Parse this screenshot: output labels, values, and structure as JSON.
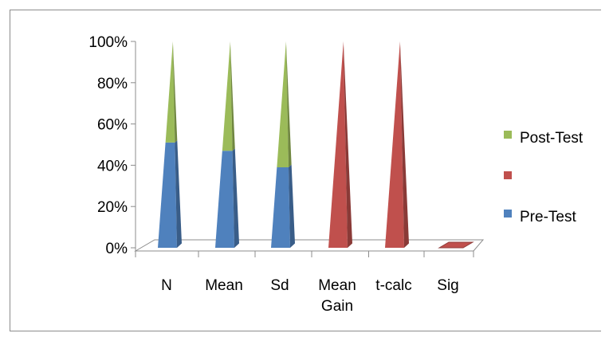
{
  "chart_data": {
    "type": "bar",
    "subtype": "100% stacked 3-D pyramid",
    "title": "",
    "xlabel": "",
    "ylabel": "",
    "ylim": [
      0,
      100
    ],
    "y_ticks": [
      "0%",
      "20%",
      "40%",
      "60%",
      "80%",
      "100%"
    ],
    "categories": [
      [
        "N"
      ],
      [
        "Mean"
      ],
      [
        "Sd"
      ],
      [
        "Mean",
        "Gain"
      ],
      [
        "t-calc"
      ],
      [
        "Sig"
      ]
    ],
    "series": [
      {
        "name": "Pre-Test",
        "color": "#4F81BD",
        "values": [
          51,
          47,
          39,
          0,
          0,
          0
        ]
      },
      {
        "name": "",
        "color": "#C0504D",
        "values": [
          0,
          0,
          0,
          100,
          100,
          0
        ]
      },
      {
        "name": "Post-Test",
        "color": "#9BBB59",
        "values": [
          49,
          53,
          61,
          0,
          0,
          0
        ]
      }
    ],
    "legend": {
      "position": "right",
      "order": [
        "Post-Test",
        "",
        "Pre-Test"
      ]
    },
    "grid": false
  }
}
